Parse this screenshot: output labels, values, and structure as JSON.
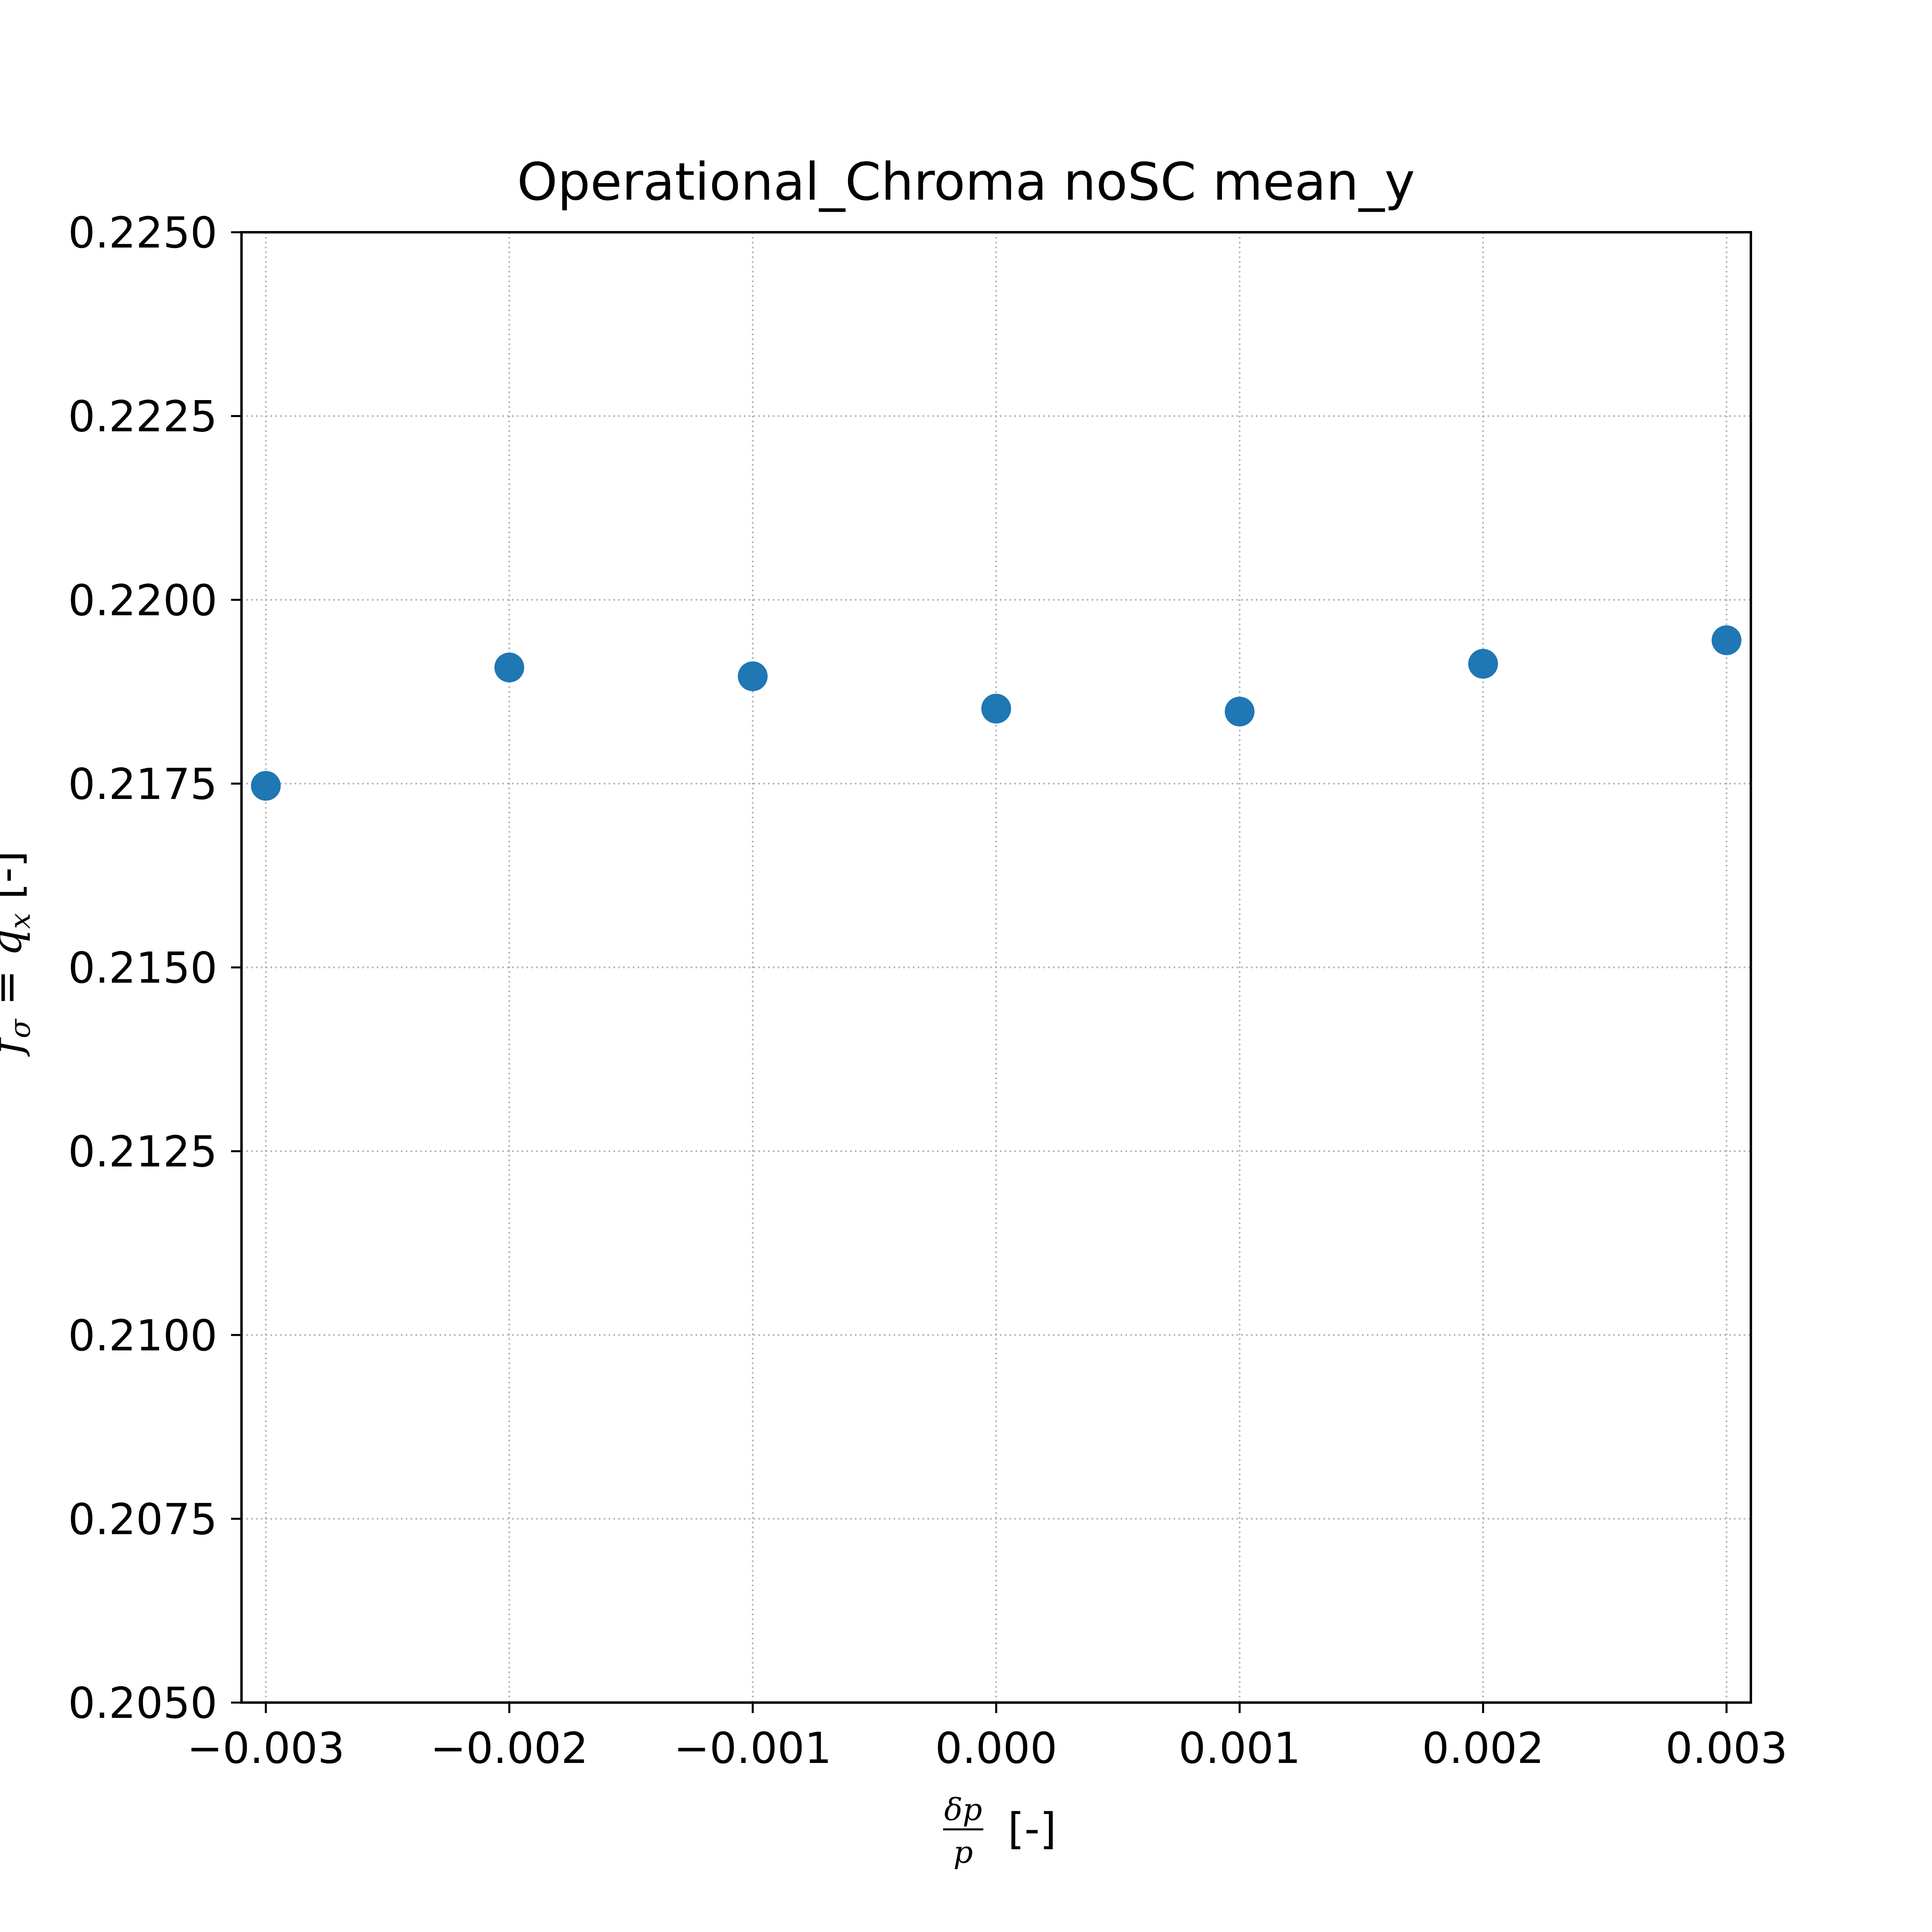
{
  "chart_data": {
    "type": "scatter",
    "title": "Operational_Chroma noSC mean_y",
    "xlabel": "δp/p [-]",
    "ylabel": "f_σ = q_x [-]",
    "xlim": [
      -0.0031,
      0.0031
    ],
    "ylim": [
      0.205,
      0.225
    ],
    "x_ticks": [
      -0.003,
      -0.002,
      -0.001,
      0.0,
      0.001,
      0.002,
      0.003
    ],
    "x_tick_labels": [
      "−0.003",
      "−0.002",
      "−0.001",
      "0.000",
      "0.001",
      "0.002",
      "0.003"
    ],
    "y_ticks": [
      0.205,
      0.2075,
      0.21,
      0.2125,
      0.215,
      0.2175,
      0.22,
      0.2225,
      0.225
    ],
    "y_tick_labels": [
      "0.2050",
      "0.2075",
      "0.2100",
      "0.2125",
      "0.2150",
      "0.2175",
      "0.2200",
      "0.2225",
      "0.2250"
    ],
    "grid": true,
    "marker_color": "#1f77b4",
    "series": [
      {
        "x": [
          -0.003,
          -0.002,
          -0.001,
          0.0,
          0.001,
          0.002,
          0.003
        ],
        "y": [
          0.21747,
          0.21908,
          0.21896,
          0.21852,
          0.21848,
          0.21913,
          0.21945
        ]
      }
    ]
  },
  "labels": {
    "title": "Operational_Chroma noSC mean_y",
    "x_frac_num": "δp",
    "x_frac_den": "p",
    "x_suffix": " [-]",
    "y_f": "f",
    "y_sigma": "σ",
    "y_eq": " = ",
    "y_q": "q",
    "y_x": "x",
    "y_suffix": " [-]"
  }
}
